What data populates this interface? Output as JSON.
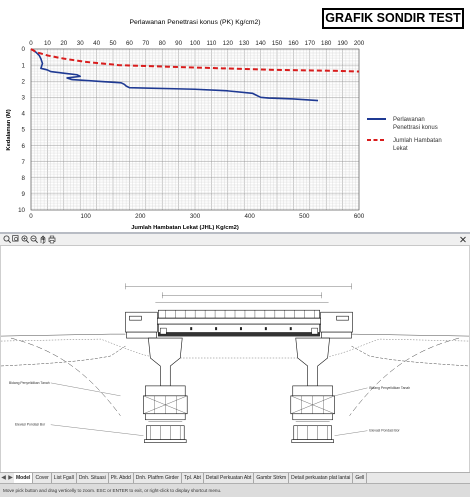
{
  "chart": {
    "title_box": "GRAFIK SONDIR TEST",
    "top_axis_title": "Perlawanan Penettrasi konus (PK) Kg/cm2)",
    "bottom_axis_title": "Jumlah Hambatan  Lekat (JHL) Kg/cm2)",
    "y_axis_title": "Kedalaman (M)",
    "top_ticks": [
      "0",
      "10",
      "20",
      "30",
      "40",
      "50",
      "60",
      "70",
      "80",
      "90",
      "100",
      "110",
      "120",
      "130",
      "140",
      "150",
      "160",
      "170",
      "180",
      "190",
      "200"
    ],
    "bottom_ticks": [
      "0",
      "100",
      "200",
      "300",
      "400",
      "500",
      "600"
    ],
    "y_ticks": [
      "0",
      "1",
      "2",
      "3",
      "4",
      "5",
      "6",
      "7",
      "8",
      "9",
      "10"
    ],
    "legend": [
      {
        "label_line1": "Perlawanan",
        "label_line2": "Penettrasi konus",
        "color": "#1f3a93",
        "style": "solid"
      },
      {
        "label_line1": "Jumlah Hambatan",
        "label_line2": "Lekat",
        "color": "#d91c1c",
        "style": "dashed"
      }
    ]
  },
  "chart_data": {
    "type": "line",
    "title": "Perlawanan Penettrasi konus (PK) Kg/cm2)",
    "y_axis": {
      "label": "Kedalaman (M)",
      "range": [
        0,
        10
      ],
      "inverted": true
    },
    "top_x_axis": {
      "label": "Perlawanan Penettrasi konus (PK) Kg/cm2)",
      "range": [
        0,
        200
      ]
    },
    "bottom_x_axis": {
      "label": "Jumlah Hambatan  Lekat (JHL) Kg/cm2)",
      "range": [
        0,
        600
      ]
    },
    "grid": true,
    "legend_position": "right",
    "series": [
      {
        "name": "Perlawanan Penettrasi konus",
        "axis": "top",
        "color": "#1f3a93",
        "points": [
          [
            0,
            0
          ],
          [
            3,
            0.2
          ],
          [
            5,
            0.4
          ],
          [
            6,
            0.6
          ],
          [
            7,
            0.9
          ],
          [
            6,
            1.2
          ],
          [
            10,
            1.3
          ],
          [
            12,
            1.4
          ],
          [
            20,
            1.5
          ],
          [
            28,
            1.6
          ],
          [
            30,
            1.7
          ],
          [
            22,
            1.8
          ],
          [
            25,
            1.9
          ],
          [
            40,
            2.0
          ],
          [
            55,
            2.1
          ],
          [
            57,
            2.2
          ],
          [
            58,
            2.3
          ],
          [
            60,
            2.4
          ],
          [
            100,
            2.5
          ],
          [
            120,
            2.6
          ],
          [
            135,
            2.75
          ],
          [
            140,
            3.0
          ],
          [
            145,
            3.05
          ],
          [
            160,
            3.1
          ],
          [
            175,
            3.2
          ]
        ]
      },
      {
        "name": "Jumlah Hambatan Lekat",
        "axis": "bottom",
        "color": "#d91c1c",
        "points": [
          [
            0,
            0
          ],
          [
            10,
            0.2
          ],
          [
            30,
            0.4
          ],
          [
            60,
            0.6
          ],
          [
            100,
            0.8
          ],
          [
            160,
            1.0
          ],
          [
            250,
            1.1
          ],
          [
            350,
            1.2
          ],
          [
            450,
            1.3
          ],
          [
            550,
            1.35
          ],
          [
            600,
            1.4
          ]
        ]
      }
    ]
  },
  "cad": {
    "tabs": [
      "Model",
      "Cover",
      "List Fgall",
      "Dnh. Situasi",
      "Plt. Abdd",
      "Dnh. Platfrm Girder",
      "Tpl. Abt",
      "Detail Perkuatan Abt",
      "Gambr Strkm",
      "Detail perkuatan plat lantai",
      "Gell"
    ],
    "active_tab": 0,
    "status_text": "Move pick button and drag verticelly to zoom. ESC or ENTER to exit, or right-click to display shortcut menu.",
    "annotations": {
      "left_label_1": "Bidang Penyelidikan Tanah",
      "left_label_2": "Elevasi Pondasi Bor",
      "right_label_1": "Bidang Penyelidikan Tanah",
      "right_label_2": "Elevasi Pondasi Bor"
    }
  }
}
